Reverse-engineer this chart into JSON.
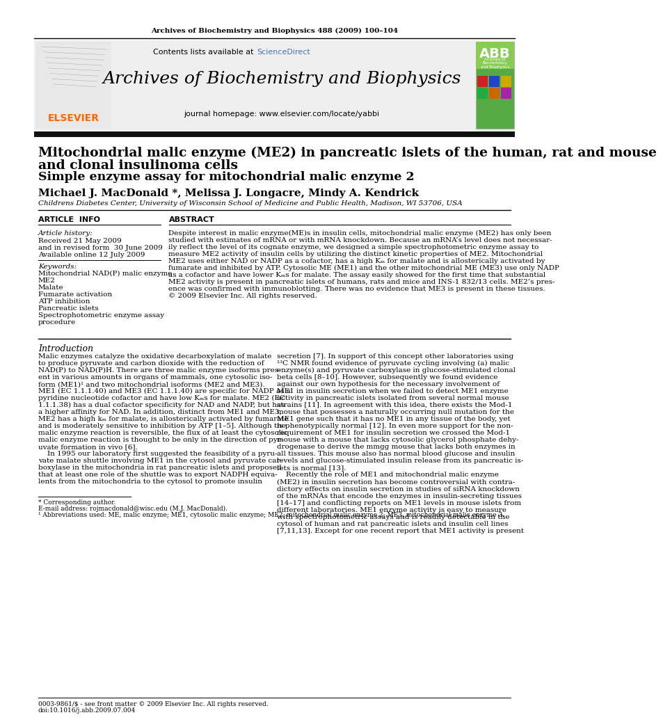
{
  "journal_header": "Archives of Biochemistry and Biophysics 488 (2009) 100–104",
  "journal_name": "Archives of Biochemistry and Biophysics",
  "journal_url": "journal homepage: www.elsevier.com/locate/yabbi",
  "title_line1": "Mitochondrial malic enzyme (ME2) in pancreatic islets of the human, rat and mouse",
  "title_line2": "and clonal insulinoma cells",
  "subtitle": "Simple enzyme assay for mitochondrial malic enzyme 2",
  "authors": "Michael J. MacDonald *, Melissa J. Longacre, Mindy A. Kendrick",
  "affiliation": "Childrens Diabetes Center, University of Wisconsin School of Medicine and Public Health, Madison, WI 53706, USA",
  "article_info_label": "ARTICLE  INFO",
  "abstract_label": "ABSTRACT",
  "article_history_label": "Article history:",
  "received": "Received 21 May 2009",
  "revised": "and in revised form  30 June 2009",
  "available": "Available online 12 July 2009",
  "keywords_label": "Keywords:",
  "keywords": [
    "Mitochondrial NAD(P) malic enzyme",
    "ME2",
    "Malate",
    "Fumarate activation",
    "ATP inhibition",
    "Pancreatic islets",
    "Spectrophotometric enzyme assay",
    "procedure"
  ],
  "abstract_lines": [
    "Despite interest in malic enzyme(ME)s in insulin cells, mitochondrial malic enzyme (ME2) has only been",
    "studied with estimates of mRNA or with mRNA knockdown. Because an mRNA’s level does not necessar-",
    "ily reflect the level of its cognate enzyme, we designed a simple spectrophotometric enzyme assay to",
    "measure ME2 activity of insulin cells by utilizing the distinct kinetic properties of ME2. Mitochondrial",
    "ME2 uses either NAD or NADP as a cofactor, has a high Kₘ for malate and is allosterically activated by",
    "fumarate and inhibited by ATP. Cytosolic ME (ME1) and the other mitochondrial ME (ME3) use only NADP",
    "as a cofactor and have lower Kₘs for malate. The assay easily showed for the first time that substantial",
    "ME2 activity is present in pancreatic islets of humans, rats and mice and INS-1 832/13 cells. ME2’s pres-",
    "ence was confirmed with immunoblotting. There was no evidence that ME3 is present in these tissues.",
    "© 2009 Elsevier Inc. All rights reserved."
  ],
  "intro_label": "Introduction",
  "intro_col1_lines": [
    "Malic enzymes catalyze the oxidative decarboxylation of malate",
    "to produce pyruvate and carbon dioxide with the reduction of",
    "NAD(P) to NAD(P)H. There are three malic enzyme isoforms pres-",
    "ent in various amounts in organs of mammals, one cytosolic iso-",
    "form (ME1)¹ and two mitochondrial isoforms (ME2 and ME3).",
    "ME1 (EC 1.1.1.40) and ME3 (EC 1.1.1.40) are specific for NADP as a",
    "pyridine nucleotide cofactor and have low Kₘs for malate. ME2 (EC",
    "1.1.1.38) has a dual cofactor specificity for NAD and NADP, but has",
    "a higher affinity for NAD. In addition, distinct from ME1 and ME3,",
    "ME2 has a high kₘ for malate, is allosterically activated by fumarate",
    "and is moderately sensitive to inhibition by ATP [1–5]. Although the",
    "malic enzyme reaction is reversible, the flux of at least the cytosolic",
    "malic enzyme reaction is thought to be only in the direction of pyr-",
    "uvate formation in vivo [6].",
    "    In 1995 our laboratory first suggested the feasibility of a pyru-",
    "vate malate shuttle involving ME1 in the cytosol and pyruvate car-",
    "boxylase in the mitochondria in rat pancreatic islets and proposed",
    "that at least one role of the shuttle was to export NADPH equiva-",
    "lents from the mitochondria to the cytosol to promote insulin"
  ],
  "intro_col2_lines": [
    "secretion [7]. In support of this concept other laboratories using",
    "¹³C NMR found evidence of pyruvate cycling involving (a) malic",
    "enzyme(s) and pyruvate carboxylase in glucose-stimulated clonal",
    "beta cells [8–10]. However, subsequently we found evidence",
    "against our own hypothesis for the necessary involvement of",
    "ME1 in insulin secretion when we failed to detect ME1 enzyme",
    "activity in pancreatic islets isolated from several normal mouse",
    "strains [11]. In agreement with this idea, there exists the Mod-1",
    "mouse that possesses a naturally occurring null mutation for the",
    "ME1 gene such that it has no ME1 in any tissue of the body, yet",
    "is phenotypically normal [12]. In even more support for the non-",
    "requirement of ME1 for insulin secretion we crossed the Mod-1",
    "mouse with a mouse that lacks cytosolic glycerol phosphate dehy-",
    "drogenase to derive the mmgg mouse that lacks both enzymes in",
    "all tissues. This mouse also has normal blood glucose and insulin",
    "levels and glucose-stimulated insulin release from its pancreatic is-",
    "lets is normal [13].",
    "    Recently the role of ME1 and mitochondrial malic enzyme",
    "(ME2) in insulin secretion has become controversial with contra-",
    "dictory effects on insulin secretion in studies of siRNA knockdown",
    "of the mRNAs that encode the enzymes in insulin-secreting tissues",
    "[14–17] and conflicting reports on ME1 levels in mouse islets from",
    "different laboratories. ME1 enzyme activity is easy to measure",
    "with spectrophotometric assays and is readily detectable in the",
    "cytosol of human and rat pancreatic islets and insulin cell lines",
    "[7,11,13]. Except for one recent report that ME1 activity is present"
  ],
  "footnote1": "* Corresponding author.",
  "footnote2": "E-mail address: rojmacdonald@wisc.edu (M.J. MacDonald).",
  "footnote3": "¹ Abbreviations used: ME, malic enzyme; ME1, cytosolic malic enzyme; ME2, mitochondrial malic enzyme 2; ME3, mitochondrial malic enzyme 3.",
  "footer_left": "0003-9861/$ - see front matter © 2009 Elsevier Inc. All rights reserved.",
  "footer_doi": "doi:10.1016/j.abb.2009.07.004",
  "bg_color": "#ffffff",
  "elsevier_color": "#ff6600",
  "scidirect_color": "#4472c4",
  "black_bar_color": "#111111"
}
